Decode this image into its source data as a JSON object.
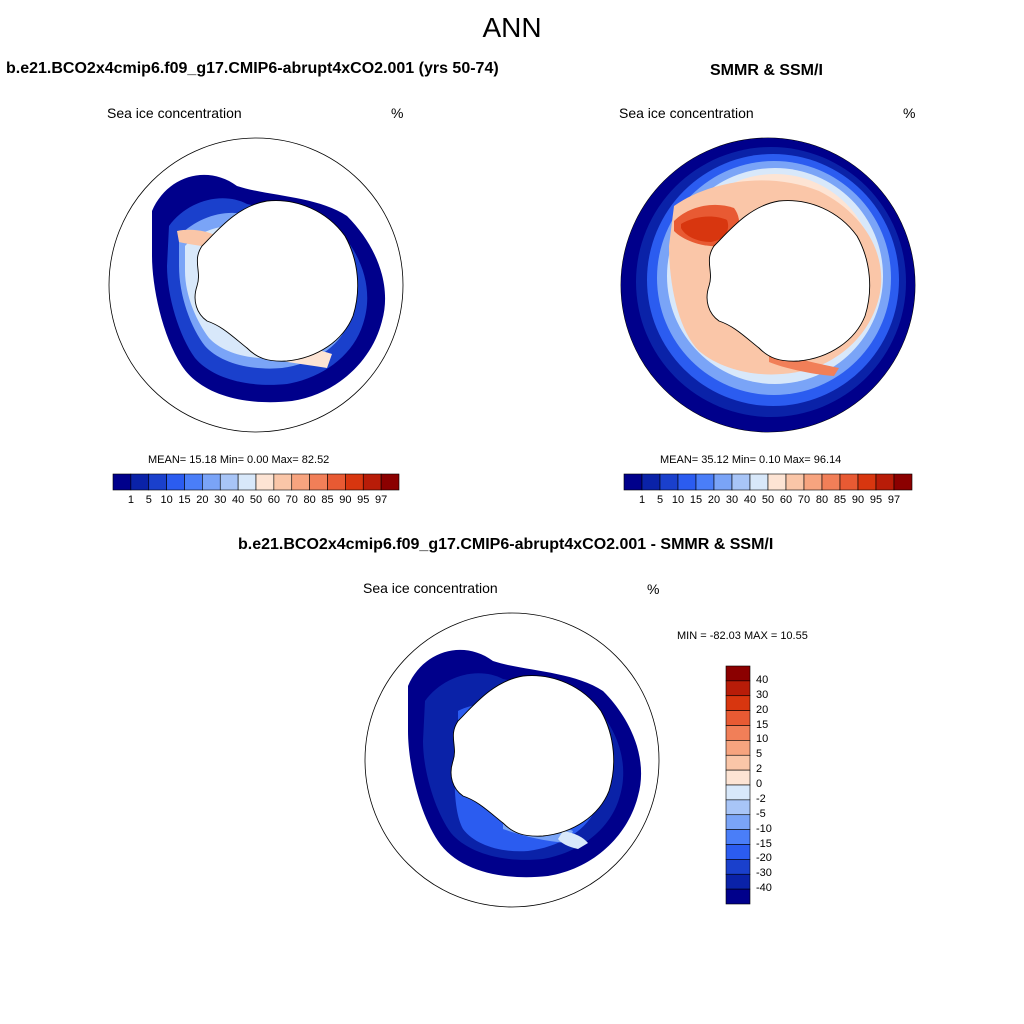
{
  "title": "ANN",
  "panels": {
    "model": {
      "title": "b.e21.BCO2x4cmip6.f09_g17.CMIP6-abrupt4xCO2.001 (yrs 50-74)",
      "label": "Sea ice concentration",
      "unit": "%",
      "stats": "MEAN=  15.18  Min=   0.00  Max=  82.52"
    },
    "obs": {
      "title": "SMMR & SSM/I",
      "label": "Sea ice concentration",
      "unit": "%",
      "stats": "MEAN=  35.12  Min=   0.10  Max=  96.14"
    },
    "diff": {
      "title": "b.e21.BCO2x4cmip6.f09_g17.CMIP6-abrupt4xCO2.001 - SMMR & SSM/I",
      "label": "Sea ice concentration",
      "unit": "%",
      "stats": "MIN = -82.03 MAX =  10.55"
    }
  },
  "colorbar_horizontal": {
    "labels": [
      "1",
      "5",
      "10",
      "15",
      "20",
      "30",
      "40",
      "50",
      "60",
      "70",
      "80",
      "85",
      "90",
      "95",
      "97"
    ],
    "colors": [
      "#00008b",
      "#0a22a8",
      "#1a40cc",
      "#2b5cf0",
      "#4a7ef8",
      "#7aa4f7",
      "#a8c5f7",
      "#d8e8fa",
      "#fde4d4",
      "#fac6a8",
      "#f7a47f",
      "#f17f58",
      "#e85a33",
      "#d8360f",
      "#b81c08",
      "#8b0000"
    ]
  },
  "colorbar_vertical": {
    "labels": [
      "40",
      "30",
      "20",
      "15",
      "10",
      "5",
      "2",
      "0",
      "-2",
      "-5",
      "-10",
      "-15",
      "-20",
      "-30",
      "-40"
    ],
    "colors": [
      "#8b0000",
      "#b81c08",
      "#d8360f",
      "#e85a33",
      "#f17f58",
      "#f7a47f",
      "#fac6a8",
      "#fde4d4",
      "#d8e8fa",
      "#a8c5f7",
      "#7aa4f7",
      "#4a7ef8",
      "#2b5cf0",
      "#1a40cc",
      "#0a22a8",
      "#00008b"
    ]
  }
}
